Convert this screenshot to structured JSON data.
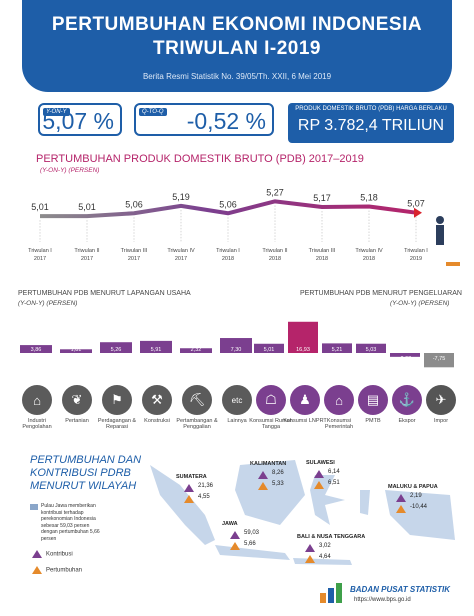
{
  "header": {
    "title_line1": "PERTUMBUHAN EKONOMI INDONESIA",
    "title_line2": "TRIWULAN I-2019",
    "subtitle": "Berita Resmi Statistik No. 39/05/Th. XXII, 6 Mei 2019"
  },
  "stats": {
    "yoy_tag": "Y-ON-Y",
    "yoy_value": "5,07 %",
    "qtoq_tag": "Q-TO-Q",
    "qtoq_value": "-0,52 %",
    "pdb_label": "PRODUK DOMESTIK BRUTO (PDB) HARGA BERLAKU",
    "pdb_value": "RP 3.782,4 TRILIUN"
  },
  "colors": {
    "brand_blue": "#1e5ea8",
    "magenta": "#b5246a",
    "purple": "#7b3f8f",
    "orange": "#e58a2b",
    "gray": "#8c8c8c"
  },
  "chart_data": [
    {
      "type": "line",
      "title": "PERTUMBUHAN PRODUK DOMESTIK BRUTO (PDB) 2017–2019",
      "ylabel": "(Y-ON-Y) (PERSEN)",
      "categories": [
        [
          "Triwulan I",
          "2017"
        ],
        [
          "Triwulan II",
          "2017"
        ],
        [
          "Triwulan III",
          "2017"
        ],
        [
          "Triwulan IV",
          "2017"
        ],
        [
          "Triwulan I",
          "2018"
        ],
        [
          "Triwulan II",
          "2018"
        ],
        [
          "Triwulan III",
          "2018"
        ],
        [
          "Triwulan IV",
          "2018"
        ],
        [
          "Triwulan I",
          "2019"
        ]
      ],
      "values": [
        5.01,
        5.01,
        5.06,
        5.19,
        5.06,
        5.27,
        5.17,
        5.18,
        5.07
      ],
      "labels": [
        "5,01",
        "5,01",
        "5,06",
        "5,19",
        "5,06",
        "5,27",
        "5,17",
        "5,18",
        "5,07"
      ],
      "ylim": [
        4.8,
        5.4
      ]
    },
    {
      "type": "bar",
      "title": "PERTUMBUHAN PDB MENURUT LAPANGAN USAHA",
      "ylabel": "(Y-ON-Y) (PERSEN)",
      "categories": [
        "Industri Pengolahan",
        "Pertanian",
        "Perdagangan & Reparasi",
        "Konstruksi",
        "Pertambangan & Penggalian",
        "Lainnya"
      ],
      "values": [
        3.86,
        1.81,
        5.26,
        5.91,
        2.32,
        7.3
      ],
      "labels": [
        "3,86",
        "1,81",
        "5,26",
        "5,91",
        "2,32",
        "7,30"
      ],
      "icons": [
        "factory-icon",
        "leaf-icon",
        "cart-icon",
        "crane-icon",
        "mining-icon",
        "etc-icon"
      ],
      "icon_glyphs": [
        "⌂",
        "❦",
        "⚑",
        "⚒",
        "⛏",
        "etc"
      ]
    },
    {
      "type": "bar",
      "title": "PERTUMBUHAN PDB MENURUT PENGELUARAN",
      "ylabel": "(Y-ON-Y) (PERSEN)",
      "categories": [
        "Konsumsi Rumah Tangga",
        "Konsumsi LNPRT",
        "Konsumsi Pemerintah",
        "PMTB",
        "Ekspor",
        "Impor"
      ],
      "values": [
        5.01,
        16.93,
        5.21,
        5.03,
        -2.08,
        -7.75
      ],
      "labels": [
        "5,01",
        "16,93",
        "5,21",
        "5,03",
        "-2,08",
        "-7,75"
      ],
      "icons": [
        "household-icon",
        "community-icon",
        "government-icon",
        "investment-icon",
        "export-icon",
        "import-icon"
      ],
      "icon_glyphs": [
        "☖",
        "♟",
        "⌂",
        "▤",
        "⚓",
        "✈"
      ]
    },
    {
      "type": "table",
      "title": "PERTUMBUHAN DAN KONTRIBUSI PDRB MENURUT WILAYAH",
      "regions": [
        {
          "name": "SUMATERA",
          "kontribusi": "21,36",
          "pertumbuhan": "4,55"
        },
        {
          "name": "JAWA",
          "kontribusi": "59,03",
          "pertumbuhan": "5,66"
        },
        {
          "name": "KALIMANTAN",
          "kontribusi": "8,26",
          "pertumbuhan": "5,33"
        },
        {
          "name": "SULAWESI",
          "kontribusi": "6,14",
          "pertumbuhan": "6,51"
        },
        {
          "name": "BALI & NUSA TENGGARA",
          "kontribusi": "3,02",
          "pertumbuhan": "4,64"
        },
        {
          "name": "MALUKU & PAPUA",
          "kontribusi": "2,19",
          "pertumbuhan": "-10,44"
        }
      ],
      "legend": {
        "kontribusi": "Kontribusi",
        "pertumbuhan": "Pertumbuhan"
      }
    }
  ],
  "region_section": {
    "title_line1": "PERTUMBUHAN DAN",
    "title_line2": "KONTRIBUSI PDRB",
    "title_line3": "MENURUT WILAYAH",
    "note": "Pulau Jawa memberikan kontribusi terhadap perekonomian Indonesia sebesar 59,03 persen dengan pertumbuhan 5,66 persen"
  },
  "footer": {
    "org_name": "BADAN PUSAT STATISTIK",
    "url": "https://www.bps.go.id"
  }
}
